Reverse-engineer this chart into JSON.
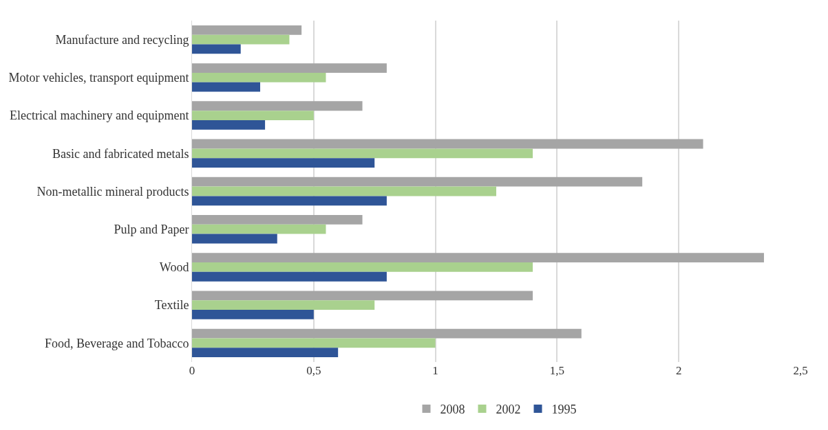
{
  "chart_data": {
    "type": "bar",
    "orientation": "horizontal",
    "categories": [
      "Manufacture and recycling",
      "Motor vehicles, transport equipment",
      "Electrical machinery and equipment",
      "Basic and fabricated metals",
      "Non-metallic mineral products",
      "Pulp and Paper",
      "Wood",
      "Textile",
      "Food, Beverage and Tobacco"
    ],
    "series": [
      {
        "name": "2008",
        "color": "#a5a5a5",
        "values": [
          0.45,
          0.8,
          0.7,
          2.1,
          1.85,
          0.7,
          2.35,
          1.4,
          1.6
        ]
      },
      {
        "name": "2002",
        "color": "#a9d18e",
        "values": [
          0.4,
          0.55,
          0.5,
          1.4,
          1.25,
          0.55,
          1.4,
          0.75,
          1.0
        ]
      },
      {
        "name": "1995",
        "color": "#2f5597",
        "values": [
          0.2,
          0.28,
          0.3,
          0.75,
          0.8,
          0.35,
          0.8,
          0.5,
          0.6
        ]
      }
    ],
    "xlim": [
      0,
      2.5
    ],
    "xticks": [
      0,
      {
        "value": 0.5,
        "label": "0,5"
      },
      1,
      {
        "value": 1.5,
        "label": "1,5"
      },
      2,
      {
        "value": 2.5,
        "label": "2,5"
      }
    ],
    "grid": "x",
    "legend": "bottom"
  }
}
